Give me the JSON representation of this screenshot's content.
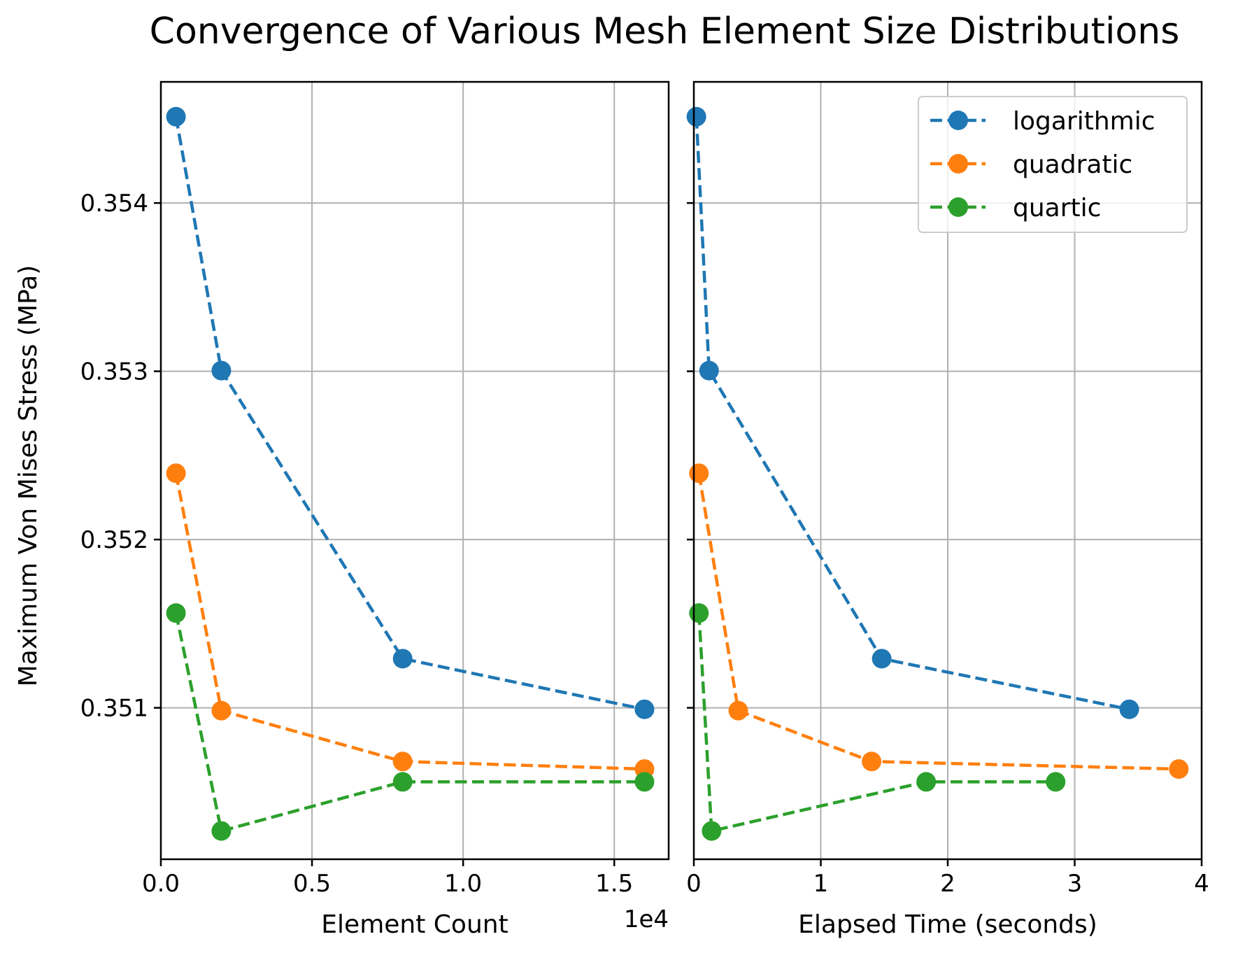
{
  "chart_data": {
    "type": "line",
    "title": "Convergence of Various Mesh Element Size Distributions",
    "ylabel": "Maximum Von Mises Stress (MPa)",
    "shared_y": true,
    "ylim": [
      0.3501,
      0.35472
    ],
    "yticks": [
      0.351,
      0.352,
      0.353,
      0.354
    ],
    "ytick_labels": [
      "0.351",
      "0.352",
      "0.353",
      "0.354"
    ],
    "grid": true,
    "legend_position": "upper-right of right panel",
    "legend": [
      "logarithmic",
      "quadratic",
      "quartic"
    ],
    "linestyle": "dashed",
    "marker": "circle",
    "colors": {
      "logarithmic": "#1f77b4",
      "quadratic": "#ff7f0e",
      "quartic": "#2ca02c"
    },
    "panels": [
      {
        "xlabel": "Element Count",
        "x_offset_text": "1e4",
        "xlim": [
          0,
          16800
        ],
        "xticks": [
          0,
          5000,
          10000,
          15000
        ],
        "xtick_labels": [
          "0.0",
          "0.5",
          "1.0",
          "1.5"
        ],
        "series": [
          {
            "name": "logarithmic",
            "x": [
              500,
              2000,
              8000,
              16000
            ],
            "y": [
              0.354513,
              0.353004,
              0.351292,
              0.350991
            ]
          },
          {
            "name": "quadratic",
            "x": [
              500,
              2000,
              8000,
              16000
            ],
            "y": [
              0.352394,
              0.350983,
              0.350681,
              0.350636
            ]
          },
          {
            "name": "quartic",
            "x": [
              500,
              2000,
              8000,
              16000
            ],
            "y": [
              0.351563,
              0.350268,
              0.35056,
              0.35056
            ]
          }
        ]
      },
      {
        "xlabel": "Elapsed Time (seconds)",
        "x_offset_text": "",
        "xlim": [
          0,
          4
        ],
        "xticks": [
          0,
          1,
          2,
          3,
          4
        ],
        "xtick_labels": [
          "0",
          "1",
          "2",
          "3",
          "4"
        ],
        "series": [
          {
            "name": "logarithmic",
            "x": [
              0.02,
              0.12,
              1.48,
              3.43
            ],
            "y": [
              0.354513,
              0.353004,
              0.351292,
              0.350991
            ]
          },
          {
            "name": "quadratic",
            "x": [
              0.04,
              0.35,
              1.4,
              3.82
            ],
            "y": [
              0.352394,
              0.350983,
              0.350681,
              0.350636
            ]
          },
          {
            "name": "quartic",
            "x": [
              0.04,
              0.14,
              1.83,
              2.85
            ],
            "y": [
              0.351563,
              0.350268,
              0.35056,
              0.35056
            ]
          }
        ]
      }
    ]
  }
}
